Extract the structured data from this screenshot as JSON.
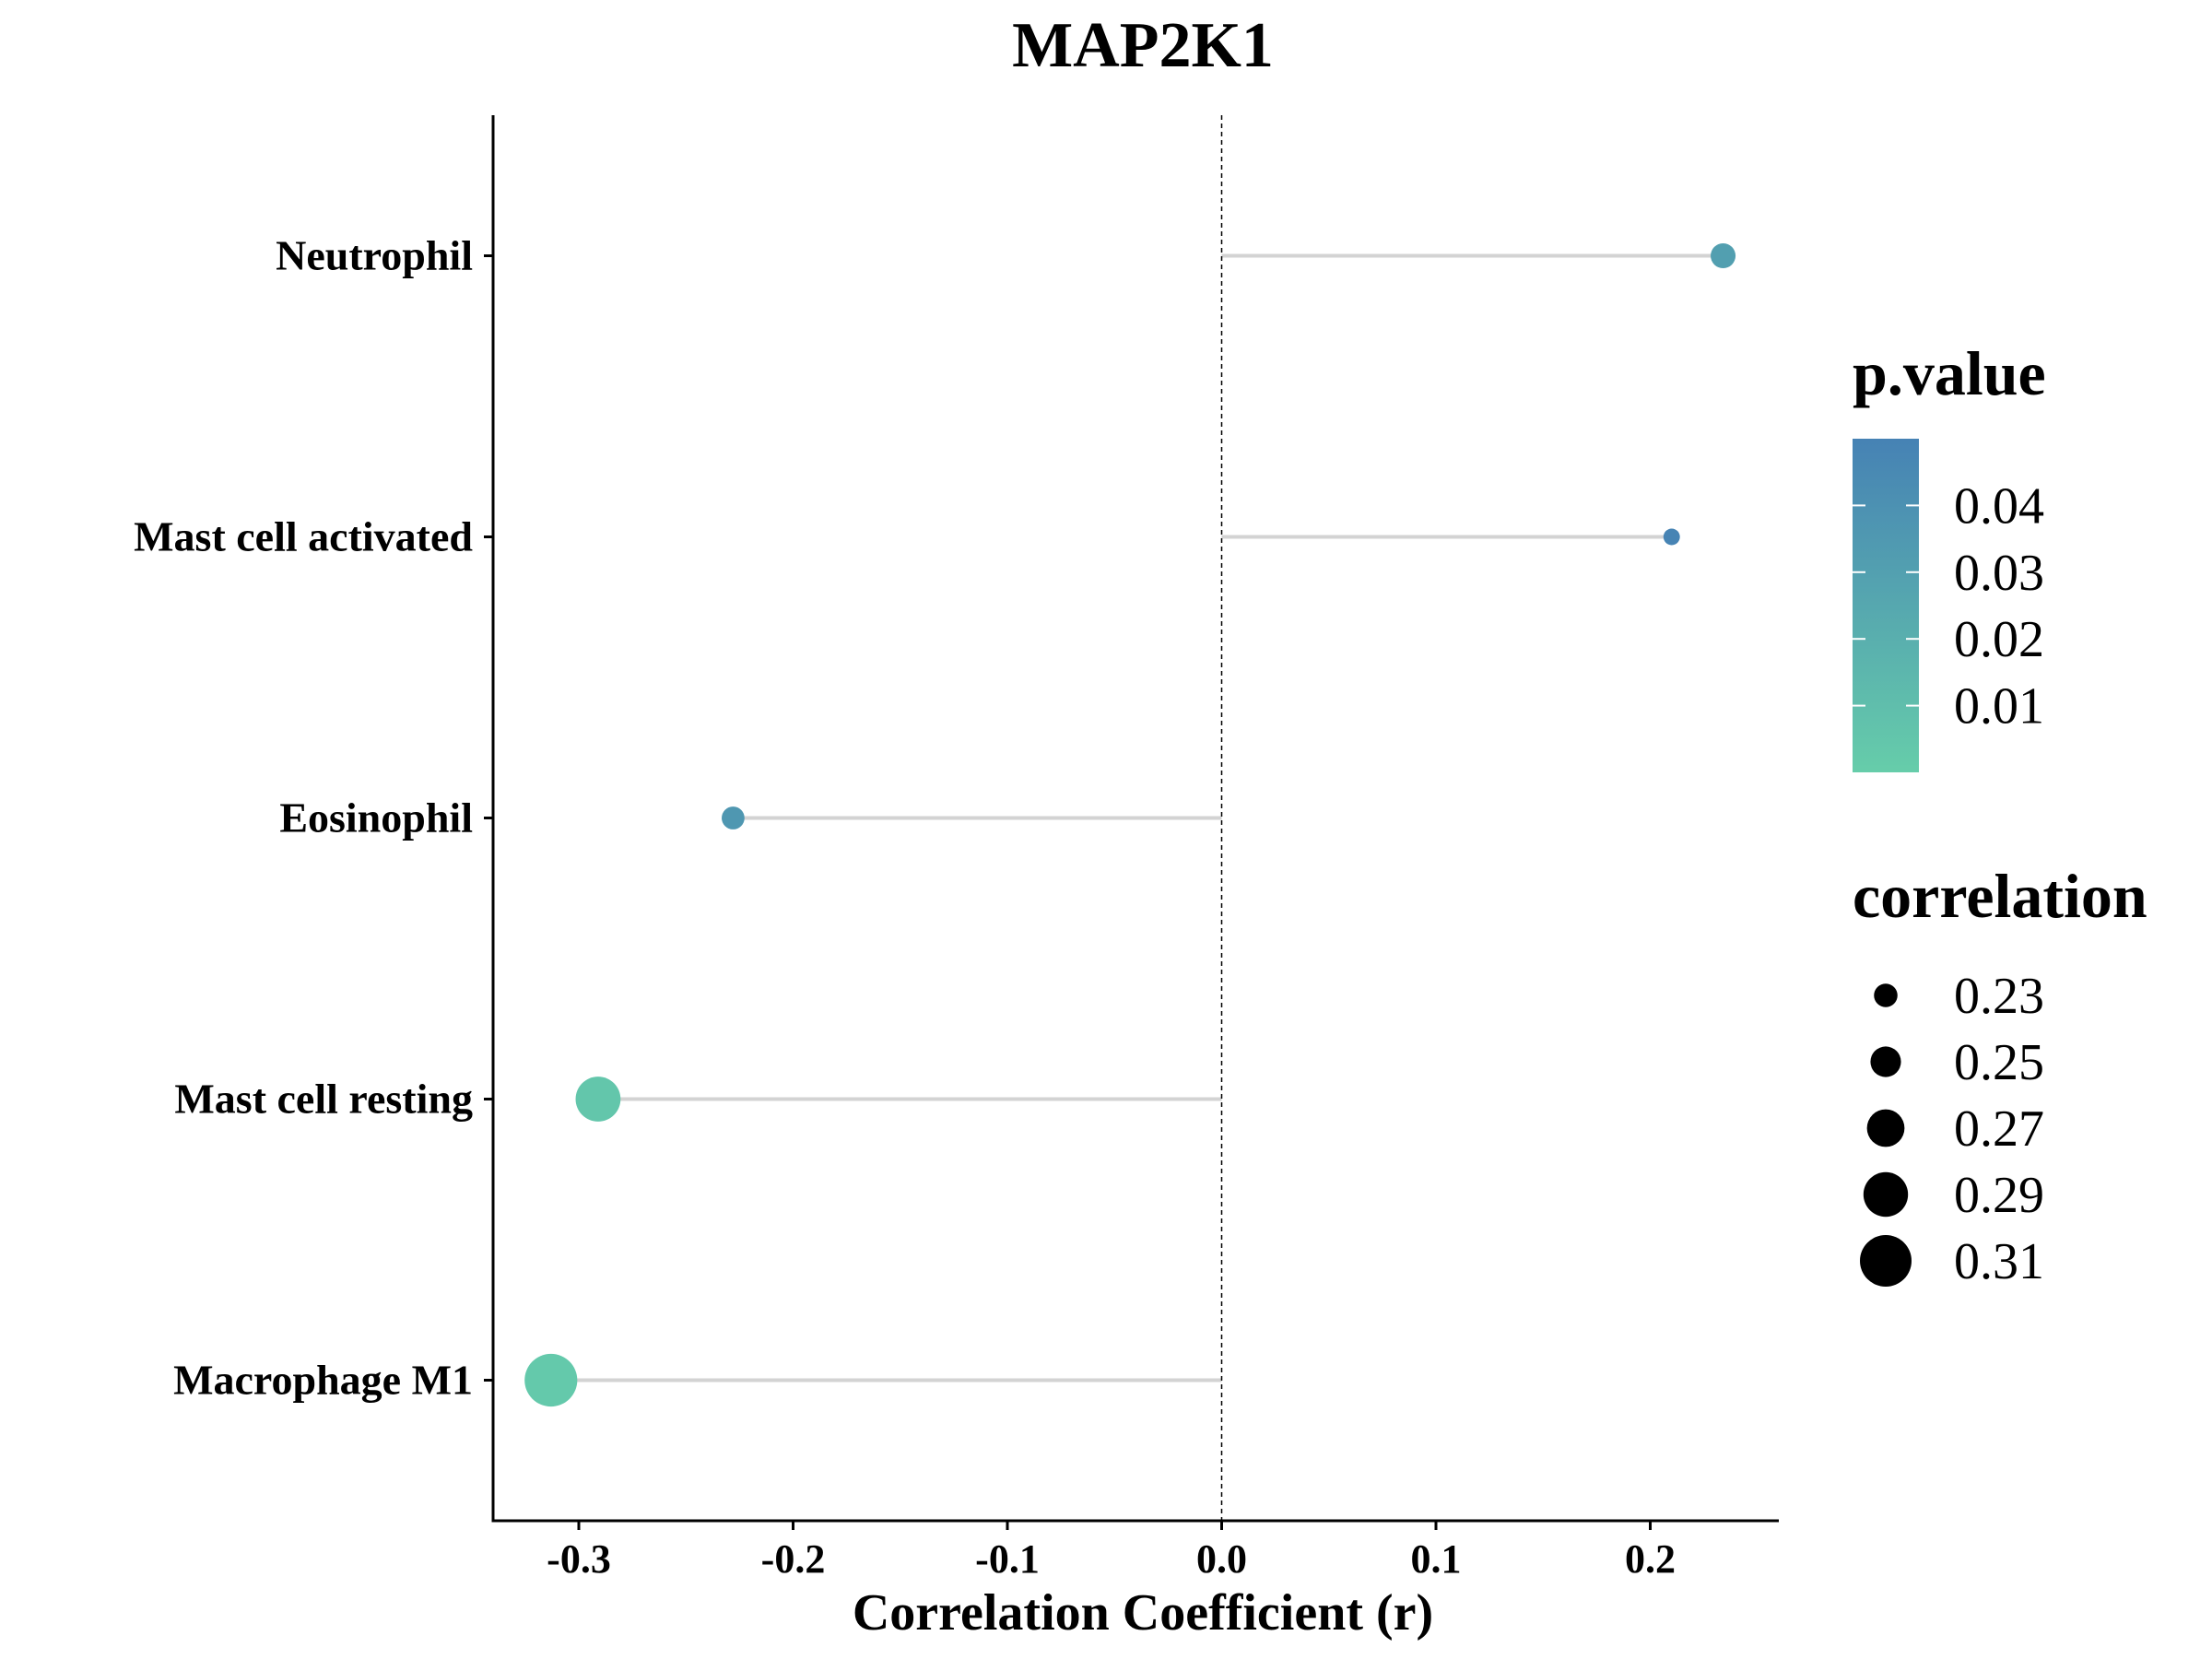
{
  "chart_data": {
    "type": "lollipop",
    "title": "MAP2K1",
    "xlabel": "Correlation Coefficient (r)",
    "ylabel": "",
    "xlim": [
      -0.34,
      0.26
    ],
    "x_ticks": [
      -0.3,
      -0.2,
      -0.1,
      0.0,
      0.1,
      0.2
    ],
    "x_tick_labels": [
      "-0.3",
      "-0.2",
      "-0.1",
      "0.0",
      "0.1",
      "0.2"
    ],
    "reference_line": 0.0,
    "categories": [
      "Neutrophil",
      "Mast cell activated",
      "Eosinophil",
      "Mast cell resting",
      "Macrophage M1"
    ],
    "points": [
      {
        "category": "Neutrophil",
        "r": 0.234,
        "p_value": 0.031,
        "correlation": 0.234
      },
      {
        "category": "Mast cell activated",
        "r": 0.21,
        "p_value": 0.049,
        "correlation": 0.21
      },
      {
        "category": "Eosinophil",
        "r": -0.228,
        "p_value": 0.036,
        "correlation": 0.228
      },
      {
        "category": "Mast cell resting",
        "r": -0.291,
        "p_value": 0.005,
        "correlation": 0.291
      },
      {
        "category": "Macrophage M1",
        "r": -0.313,
        "p_value": 0.003,
        "correlation": 0.313
      }
    ],
    "legend_color": {
      "title": "p.value",
      "min": 0.0,
      "max": 0.05,
      "low_color": "#66cdaa",
      "high_color": "#4682b4",
      "breaks": [
        0.04,
        0.03,
        0.02,
        0.01
      ],
      "break_labels": [
        "0.04",
        "0.03",
        "0.02",
        "0.01"
      ]
    },
    "legend_size": {
      "title": "correlation",
      "breaks": [
        0.23,
        0.25,
        0.27,
        0.29,
        0.31
      ],
      "break_labels": [
        "0.23",
        "0.25",
        "0.27",
        "0.29",
        "0.31"
      ]
    },
    "legend_placement": "right",
    "grid": false,
    "colors": {
      "segment": "#d3d3d3",
      "axis": "#000000",
      "reference": "#000000"
    }
  }
}
